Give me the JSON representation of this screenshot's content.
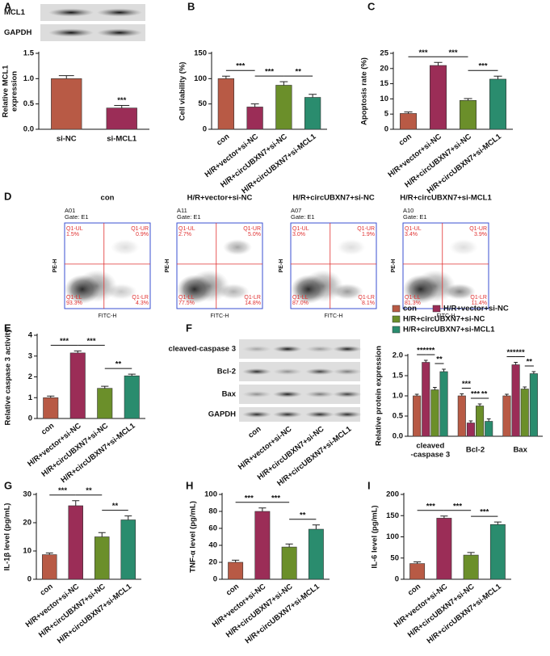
{
  "blot_a": {
    "label": "A",
    "rows": [
      "MCL1",
      "GAPDH"
    ]
  },
  "flow": {
    "label": "D",
    "x_label": "FITC-H",
    "y_label": "PE-H",
    "gate": "Gate: E1",
    "titles": [
      "con",
      "H/R+vector+si-NC",
      "H/R+circUBXN7+si-NC",
      "H/R+circUBXN7+si-MCL1"
    ],
    "quadrant_names": [
      "Q1-UL",
      "Q1-UR",
      "Q1-LL",
      "Q1-LR"
    ],
    "plots": [
      {
        "id": "A01",
        "quadrants": [
          "1.5%",
          "0.9%",
          "93.3%",
          "4.3%"
        ]
      },
      {
        "id": "A11",
        "quadrants": [
          "2.7%",
          "5.0%",
          "77.5%",
          "14.8%"
        ]
      },
      {
        "id": "A07",
        "quadrants": [
          "3.0%",
          "1.9%",
          "87.0%",
          "8.1%"
        ]
      },
      {
        "id": "A10",
        "quadrants": [
          "3.4%",
          "3.9%",
          "81.3%",
          "11.4%"
        ]
      }
    ]
  },
  "blot_f": {
    "label": "F",
    "rows": [
      "cleaved-caspase 3",
      "Bcl-2",
      "Bax",
      "GAPDH"
    ],
    "lanes": [
      "con",
      "H/R+vector+si-NC",
      "H/R+circUBXN7+si-NC",
      "H/R+circUBXN7+si-MCL1"
    ]
  },
  "chart_data": [
    {
      "type": "bar",
      "ylabel": "Relative MCL1\nexpression",
      "categories": [
        "si-NC",
        "si-MCL1"
      ],
      "values": [
        1.0,
        0.42
      ],
      "errors": [
        0.06,
        0.05
      ],
      "colors": [
        "#b85a45",
        "#9b2d57"
      ],
      "ylim": [
        0,
        1.5
      ],
      "yticks": [
        {
          "value": 0,
          "label": "0.0"
        },
        {
          "value": 0.5,
          "label": "0.5"
        },
        {
          "value": 1,
          "label": "1.0"
        },
        {
          "value": 1.5,
          "label": "1.5"
        }
      ],
      "annotations": [
        "***"
      ]
    },
    {
      "type": "bar",
      "label": "B",
      "ylabel": "Cell viability (%)",
      "categories": [
        "con",
        "H/R+vector+si-NC",
        "H/R+circUBXN7+si-NC",
        "H/R+circUBXN7+si-MCL1"
      ],
      "values": [
        100,
        44,
        87,
        63
      ],
      "errors": [
        5,
        6,
        7,
        6
      ],
      "colors": [
        "#b85a45",
        "#9b2d57",
        "#6b8f2a",
        "#2a8c6e"
      ],
      "ylim": [
        0,
        150
      ],
      "yticks": [
        0,
        50,
        100,
        150
      ],
      "annotations": [
        "***",
        "***",
        "**"
      ]
    },
    {
      "type": "bar",
      "label": "C",
      "ylabel": "Apoptosis rate (%)",
      "categories": [
        "con",
        "H/R+vector+si-NC",
        "H/R+circUBXN7+si-NC",
        "H/R+circUBXN7+si-MCL1"
      ],
      "values": [
        5.2,
        21,
        9.5,
        16.5
      ],
      "errors": [
        0.5,
        1.0,
        0.6,
        1.0
      ],
      "colors": [
        "#b85a45",
        "#9b2d57",
        "#6b8f2a",
        "#2a8c6e"
      ],
      "ylim": [
        0,
        25
      ],
      "yticks": [
        0,
        5,
        10,
        15,
        20,
        25
      ],
      "annotations": [
        "***",
        "***",
        "***"
      ]
    },
    {
      "type": "bar",
      "label": "E",
      "ylabel": "Relative caspase 3 activity",
      "categories": [
        "con",
        "H/R+vector+si-NC",
        "H/R+circUBXN7+si-NC",
        "H/R+circUBXN7+si-MCL1"
      ],
      "values": [
        1.0,
        3.15,
        1.45,
        2.05
      ],
      "errors": [
        0.08,
        0.1,
        0.1,
        0.08
      ],
      "colors": [
        "#b85a45",
        "#9b2d57",
        "#6b8f2a",
        "#2a8c6e"
      ],
      "ylim": [
        0,
        4
      ],
      "yticks": [
        0,
        1,
        2,
        3,
        4
      ],
      "annotations": [
        "***",
        "***",
        "**"
      ]
    },
    {
      "type": "grouped_bar",
      "ylabel": "Relative protein expression",
      "categories": [
        "cleaved\n-caspase 3",
        "Bcl-2",
        "Bax"
      ],
      "series": [
        {
          "name": "con",
          "color": "#b85a45",
          "values": [
            1.0,
            1.0,
            1.0
          ],
          "errors": [
            0.04,
            0.05,
            0.04
          ]
        },
        {
          "name": "H/R+vector+si-NC",
          "color": "#9b2d57",
          "values": [
            1.83,
            0.33,
            1.77
          ],
          "errors": [
            0.05,
            0.05,
            0.06
          ]
        },
        {
          "name": "H/R+circUBXN7+si-NC",
          "color": "#6b8f2a",
          "values": [
            1.15,
            0.75,
            1.17
          ],
          "errors": [
            0.06,
            0.05,
            0.05
          ]
        },
        {
          "name": "H/R+circUBXN7+si-MCL1",
          "color": "#2a8c6e",
          "values": [
            1.6,
            0.37,
            1.55
          ],
          "errors": [
            0.06,
            0.06,
            0.05
          ]
        }
      ],
      "ylim": [
        0,
        2
      ],
      "yticks": [
        {
          "value": 0,
          "label": "0.0"
        },
        {
          "value": 0.5,
          "label": "0.5"
        },
        {
          "value": 1,
          "label": "1.0"
        },
        {
          "value": 1.5,
          "label": "1.5"
        },
        {
          "value": 2,
          "label": "2.0"
        }
      ],
      "annotations": [
        "***",
        "***",
        "**",
        "***",
        "***",
        "**",
        "***",
        "***",
        "**"
      ]
    },
    {
      "type": "bar",
      "label": "G",
      "ylabel": "IL-1β level (pg/mL)",
      "categories": [
        "con",
        "H/R+vector+si-NC",
        "H/R+circUBXN7+si-NC",
        "H/R+circUBXN7+si-MCL1"
      ],
      "values": [
        8.7,
        26,
        15,
        21
      ],
      "errors": [
        0.6,
        1.8,
        1.5,
        1.4
      ],
      "colors": [
        "#b85a45",
        "#9b2d57",
        "#6b8f2a",
        "#2a8c6e"
      ],
      "ylim": [
        0,
        30
      ],
      "yticks": [
        0,
        10,
        20,
        30
      ],
      "annotations": [
        "***",
        "**",
        "**"
      ]
    },
    {
      "type": "bar",
      "label": "H",
      "ylabel": "TNF-α level (pg/mL)",
      "categories": [
        "con",
        "H/R+vector+si-NC",
        "H/R+circUBXN7+si-NC",
        "H/R+circUBXN7+si-MCL1"
      ],
      "values": [
        20,
        80,
        38,
        59
      ],
      "errors": [
        2.5,
        4,
        3.5,
        5
      ],
      "colors": [
        "#b85a45",
        "#9b2d57",
        "#6b8f2a",
        "#2a8c6e"
      ],
      "ylim": [
        0,
        100
      ],
      "yticks": [
        0,
        20,
        40,
        60,
        80,
        100
      ],
      "annotations": [
        "***",
        "***",
        "**"
      ]
    },
    {
      "type": "bar",
      "label": "I",
      "ylabel": "IL-6 level (pg/mL)",
      "categories": [
        "con",
        "H/R+vector+si-NC",
        "H/R+circUBXN7+si-NC",
        "H/R+circUBXN7+si-MCL1"
      ],
      "values": [
        37,
        144,
        57,
        129
      ],
      "errors": [
        4,
        5,
        6,
        6
      ],
      "colors": [
        "#b85a45",
        "#9b2d57",
        "#6b8f2a",
        "#2a8c6e"
      ],
      "ylim": [
        0,
        200
      ],
      "yticks": [
        0,
        50,
        100,
        150,
        200
      ],
      "annotations": [
        "***",
        "***",
        "***"
      ]
    }
  ]
}
